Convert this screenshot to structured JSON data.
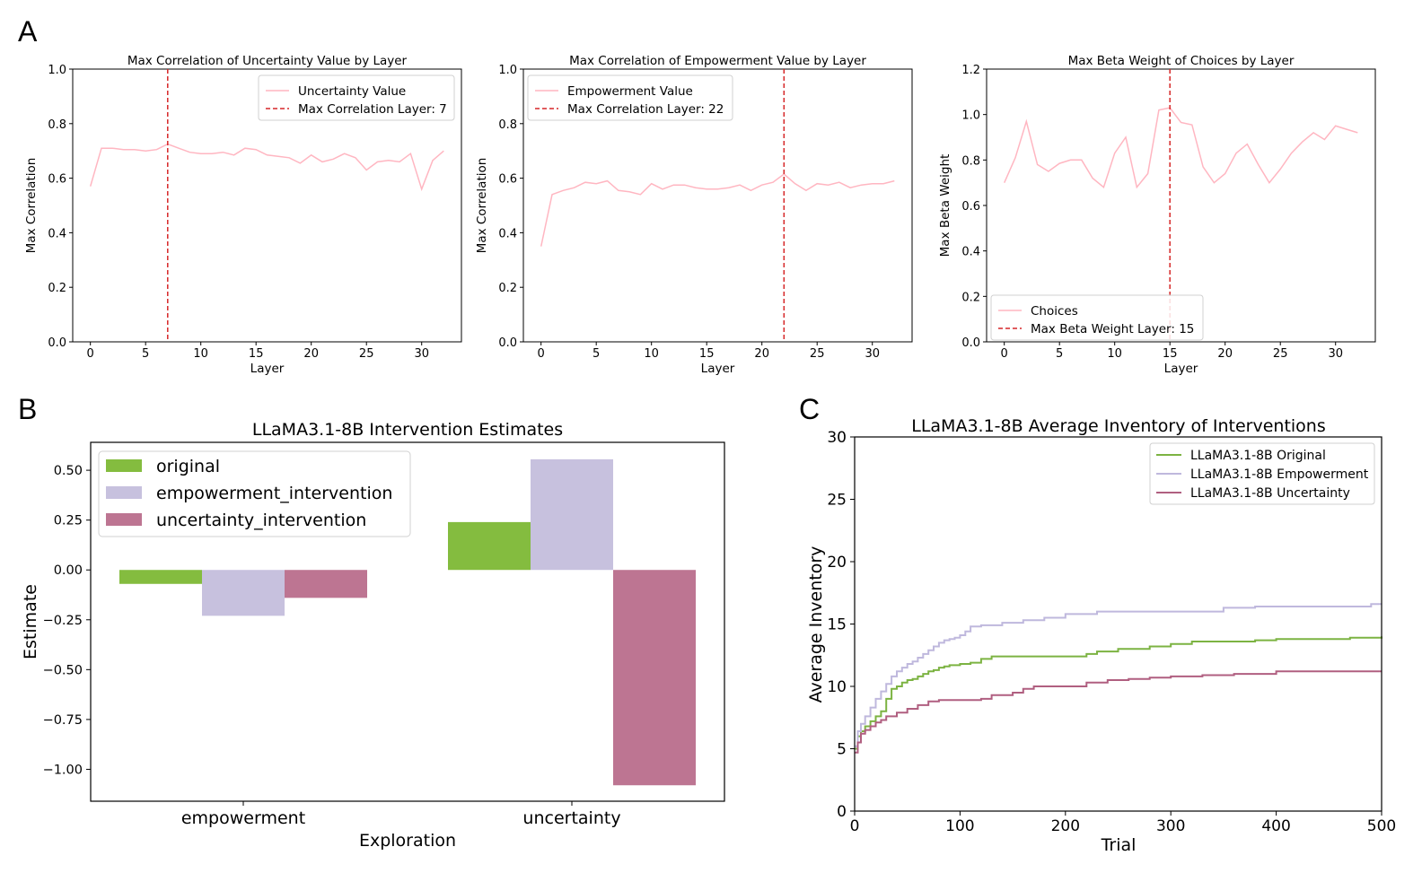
{
  "panels": {
    "a": "A",
    "b": "B",
    "c": "C"
  },
  "chart_data": [
    {
      "id": "a1",
      "type": "line",
      "title": "Max Correlation of Uncertainty Value by Layer",
      "xlabel": "Layer",
      "ylabel": "Max Correlation",
      "xlim": [
        -1.6,
        33.6
      ],
      "ylim": [
        0.0,
        1.0
      ],
      "xticks": [
        0,
        5,
        10,
        15,
        20,
        25,
        30
      ],
      "yticks": [
        "0.0",
        "0.2",
        "0.4",
        "0.6",
        "0.8",
        "1.0"
      ],
      "series": [
        {
          "name": "Uncertainty Value",
          "color": "#ffb6c1",
          "x": [
            0,
            1,
            2,
            3,
            4,
            5,
            6,
            7,
            8,
            9,
            10,
            11,
            12,
            13,
            14,
            15,
            16,
            17,
            18,
            19,
            20,
            21,
            22,
            23,
            24,
            25,
            26,
            27,
            28,
            29,
            30,
            31,
            32
          ],
          "values": [
            0.57,
            0.71,
            0.71,
            0.705,
            0.705,
            0.7,
            0.705,
            0.725,
            0.71,
            0.695,
            0.69,
            0.69,
            0.695,
            0.685,
            0.71,
            0.705,
            0.685,
            0.68,
            0.675,
            0.655,
            0.685,
            0.66,
            0.67,
            0.69,
            0.675,
            0.63,
            0.66,
            0.665,
            0.66,
            0.69,
            0.56,
            0.665,
            0.7
          ]
        }
      ],
      "vline": {
        "name": "Max Correlation Layer: 7",
        "x": 7,
        "color": "#d62728"
      },
      "legend": "top-right"
    },
    {
      "id": "a2",
      "type": "line",
      "title": "Max Correlation of Empowerment Value by Layer",
      "xlabel": "Layer",
      "ylabel": "Max Correlation",
      "xlim": [
        -1.6,
        33.6
      ],
      "ylim": [
        0.0,
        1.0
      ],
      "xticks": [
        0,
        5,
        10,
        15,
        20,
        25,
        30
      ],
      "yticks": [
        "0.0",
        "0.2",
        "0.4",
        "0.6",
        "0.8",
        "1.0"
      ],
      "series": [
        {
          "name": "Empowerment Value",
          "color": "#ffb6c1",
          "x": [
            0,
            1,
            2,
            3,
            4,
            5,
            6,
            7,
            8,
            9,
            10,
            11,
            12,
            13,
            14,
            15,
            16,
            17,
            18,
            19,
            20,
            21,
            22,
            23,
            24,
            25,
            26,
            27,
            28,
            29,
            30,
            31,
            32
          ],
          "values": [
            0.35,
            0.54,
            0.555,
            0.565,
            0.585,
            0.58,
            0.59,
            0.555,
            0.55,
            0.54,
            0.58,
            0.56,
            0.575,
            0.575,
            0.565,
            0.56,
            0.56,
            0.565,
            0.575,
            0.555,
            0.575,
            0.585,
            0.615,
            0.58,
            0.555,
            0.58,
            0.575,
            0.585,
            0.565,
            0.575,
            0.58,
            0.58,
            0.59
          ]
        }
      ],
      "vline": {
        "name": "Max Correlation Layer: 22",
        "x": 22,
        "color": "#d62728"
      },
      "legend": "top-left"
    },
    {
      "id": "a3",
      "type": "line",
      "title": "Max Beta Weight of Choices by Layer",
      "xlabel": "Layer",
      "ylabel": "Max Beta Weight",
      "xlim": [
        -1.6,
        33.6
      ],
      "ylim": [
        0.0,
        1.2
      ],
      "xticks": [
        0,
        5,
        10,
        15,
        20,
        25,
        30
      ],
      "yticks": [
        "0.0",
        "0.2",
        "0.4",
        "0.6",
        "0.8",
        "1.0",
        "1.2"
      ],
      "series": [
        {
          "name": "Choices",
          "color": "#ffb6c1",
          "x": [
            0,
            1,
            2,
            3,
            4,
            5,
            6,
            7,
            8,
            9,
            10,
            11,
            12,
            13,
            14,
            15,
            16,
            17,
            18,
            19,
            20,
            21,
            22,
            23,
            24,
            25,
            26,
            27,
            28,
            29,
            30,
            31,
            32
          ],
          "values": [
            0.7,
            0.81,
            0.97,
            0.78,
            0.75,
            0.785,
            0.8,
            0.8,
            0.72,
            0.68,
            0.83,
            0.9,
            0.68,
            0.74,
            1.02,
            1.03,
            0.965,
            0.955,
            0.77,
            0.7,
            0.74,
            0.83,
            0.87,
            0.78,
            0.7,
            0.76,
            0.83,
            0.88,
            0.92,
            0.89,
            0.95,
            0.935,
            0.92
          ]
        }
      ],
      "vline": {
        "name": "Max Beta Weight Layer: 15",
        "x": 15,
        "color": "#d62728"
      },
      "legend": "bottom-left"
    },
    {
      "id": "b",
      "type": "bar",
      "title": "LLaMA3.1-8B Intervention Estimates",
      "xlabel": "Exploration",
      "ylabel": "Estimate",
      "categories": [
        "empowerment",
        "uncertainty"
      ],
      "ylim": [
        -1.16,
        0.64
      ],
      "yticks": [
        "0.50",
        "0.25",
        "0.00",
        "−0.25",
        "−0.50",
        "−0.75",
        "−1.00"
      ],
      "ytick_values": [
        0.5,
        0.25,
        0,
        -0.25,
        -0.5,
        -0.75,
        -1.0
      ],
      "series": [
        {
          "name": "original",
          "color": "#84bc3f",
          "values": [
            -0.07,
            0.24
          ]
        },
        {
          "name": "empowerment_intervention",
          "color": "#c7c1de",
          "values": [
            -0.23,
            0.555
          ]
        },
        {
          "name": "uncertainty_intervention",
          "color": "#bd7592",
          "values": [
            -0.14,
            -1.08
          ]
        }
      ],
      "legend": "top-left"
    },
    {
      "id": "c",
      "type": "line",
      "title": "LLaMA3.1-8B Average Inventory of Interventions",
      "xlabel": "Trial",
      "ylabel": "Average Inventory",
      "xlim": [
        0,
        500
      ],
      "ylim": [
        0,
        30
      ],
      "xticks": [
        0,
        100,
        200,
        300,
        400,
        500
      ],
      "yticks": [
        0,
        5,
        10,
        15,
        20,
        25,
        30
      ],
      "series": [
        {
          "name": "LLaMA3.1-8B Original",
          "color": "#7cb342",
          "x": [
            0,
            3,
            6,
            10,
            15,
            20,
            25,
            30,
            35,
            40,
            45,
            50,
            55,
            60,
            65,
            70,
            75,
            80,
            85,
            90,
            100,
            110,
            120,
            130,
            150,
            180,
            200,
            220,
            230,
            250,
            280,
            300,
            320,
            350,
            380,
            400,
            450,
            470,
            500
          ],
          "values": [
            5.0,
            6.0,
            6.4,
            6.8,
            7.2,
            7.6,
            8.0,
            9.0,
            9.8,
            10.0,
            10.3,
            10.5,
            10.6,
            10.8,
            11.0,
            11.2,
            11.3,
            11.5,
            11.6,
            11.7,
            11.8,
            11.9,
            12.2,
            12.4,
            12.4,
            12.4,
            12.4,
            12.6,
            12.8,
            13.0,
            13.2,
            13.4,
            13.6,
            13.6,
            13.7,
            13.8,
            13.8,
            13.9,
            14.0
          ]
        },
        {
          "name": "LLaMA3.1-8B Empowerment",
          "color": "#bfb8dd",
          "x": [
            0,
            3,
            6,
            10,
            15,
            20,
            25,
            30,
            35,
            40,
            45,
            50,
            55,
            60,
            65,
            70,
            75,
            80,
            85,
            90,
            95,
            100,
            105,
            110,
            120,
            140,
            160,
            180,
            200,
            230,
            260,
            300,
            330,
            350,
            380,
            420,
            460,
            490,
            500
          ],
          "values": [
            5.2,
            6.4,
            7.0,
            7.6,
            8.3,
            9.0,
            9.6,
            10.2,
            10.8,
            11.2,
            11.5,
            11.8,
            12.0,
            12.3,
            12.6,
            12.9,
            13.2,
            13.5,
            13.7,
            13.8,
            13.9,
            14.1,
            14.4,
            14.8,
            14.9,
            15.1,
            15.3,
            15.5,
            15.8,
            16.0,
            16.0,
            16.0,
            16.0,
            16.3,
            16.4,
            16.4,
            16.4,
            16.6,
            16.6
          ]
        },
        {
          "name": "LLaMA3.1-8B Uncertainty",
          "color": "#b05f80",
          "x": [
            0,
            3,
            6,
            10,
            15,
            20,
            25,
            30,
            40,
            50,
            60,
            70,
            80,
            90,
            100,
            110,
            120,
            130,
            140,
            150,
            160,
            170,
            180,
            200,
            220,
            240,
            260,
            280,
            300,
            330,
            360,
            400,
            450,
            500
          ],
          "values": [
            4.7,
            5.5,
            6.2,
            6.5,
            6.8,
            7.1,
            7.3,
            7.6,
            7.9,
            8.2,
            8.5,
            8.8,
            8.9,
            8.9,
            8.9,
            8.9,
            9.0,
            9.3,
            9.3,
            9.5,
            9.8,
            10.0,
            10.0,
            10.0,
            10.3,
            10.5,
            10.6,
            10.7,
            10.8,
            10.9,
            11.0,
            11.2,
            11.2,
            11.2
          ]
        }
      ],
      "legend": "top-right"
    }
  ]
}
